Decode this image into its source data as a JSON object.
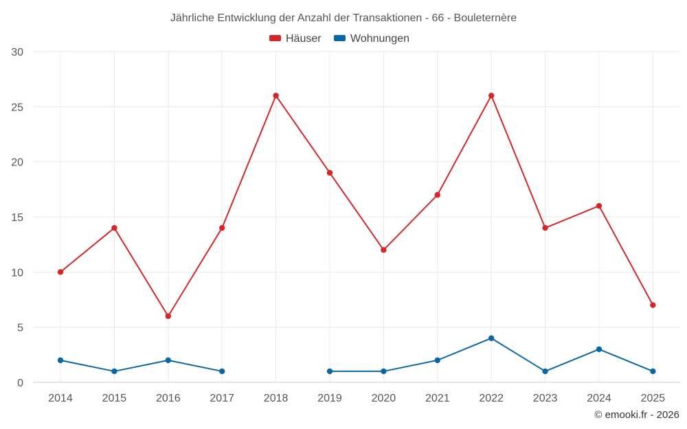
{
  "chart_data": {
    "type": "line",
    "title": "Jährliche Entwicklung der Anzahl der Transaktionen - 66 - Bouleternère",
    "categories": [
      "2014",
      "2015",
      "2016",
      "2017",
      "2018",
      "2019",
      "2020",
      "2021",
      "2022",
      "2023",
      "2024",
      "2025"
    ],
    "series": [
      {
        "name": "Häuser",
        "color": "#d62728",
        "values": [
          10,
          14,
          6,
          14,
          26,
          19,
          12,
          17,
          26,
          14,
          16,
          7
        ]
      },
      {
        "name": "Wohnungen",
        "color": "#0a67a3",
        "values": [
          2,
          1,
          2,
          1,
          null,
          1,
          1,
          2,
          4,
          1,
          3,
          1
        ]
      }
    ],
    "ylim": [
      0,
      30
    ],
    "yticks": [
      0,
      5,
      10,
      15,
      20,
      25,
      30
    ],
    "xlabel": "",
    "ylabel": "",
    "grid": true,
    "legend": "top-center"
  },
  "credit": "© emooki.fr - 2026"
}
